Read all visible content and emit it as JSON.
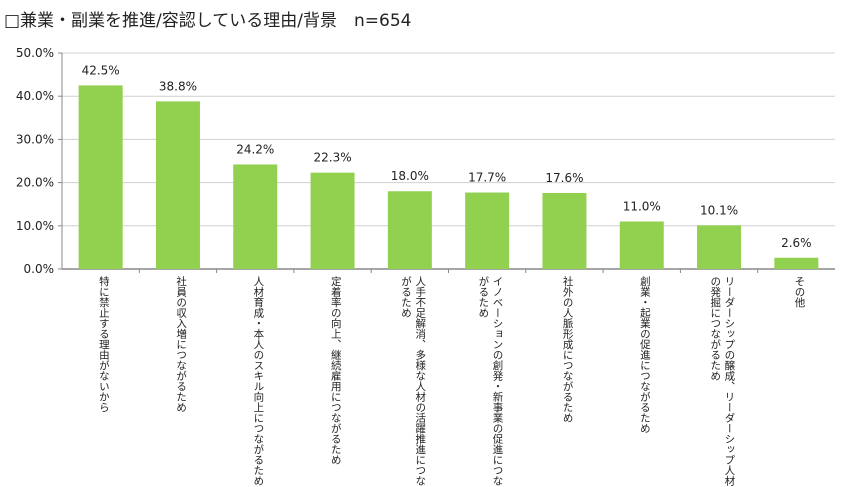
{
  "chart_data": {
    "type": "bar",
    "title": "□兼業・副業を推進/容認している理由/背景　n=654",
    "categories": [
      "特に禁止する理由がないから",
      "社員の収入増につながるため",
      "人材育成・本人のスキル向上につながるため",
      "定着率の向上、継続雇用につながるため",
      "人手不足解消、多様な人材の活躍推進につながるため",
      "イノベーションの創発・新事業の促進につながるため",
      "社外の人脈形成につながるため",
      "創業・起業の促進につながるため",
      "リーダーシップの醸成、リーダーシップ人材の発掘につながるため",
      "その他"
    ],
    "values": [
      42.5,
      38.8,
      24.2,
      22.3,
      18.0,
      17.7,
      17.6,
      11.0,
      10.1,
      2.6
    ],
    "data_labels": [
      "42.5%",
      "38.8%",
      "24.2%",
      "22.3%",
      "18.0%",
      "17.7%",
      "17.6%",
      "11.0%",
      "10.1%",
      "2.6%"
    ],
    "yticks": [
      "0.0%",
      "10.0%",
      "20.0%",
      "30.0%",
      "40.0%",
      "50.0%"
    ],
    "ylim": [
      0,
      50
    ],
    "xlabel": "",
    "ylabel": "",
    "grid": true,
    "bar_color": "#92D050"
  }
}
